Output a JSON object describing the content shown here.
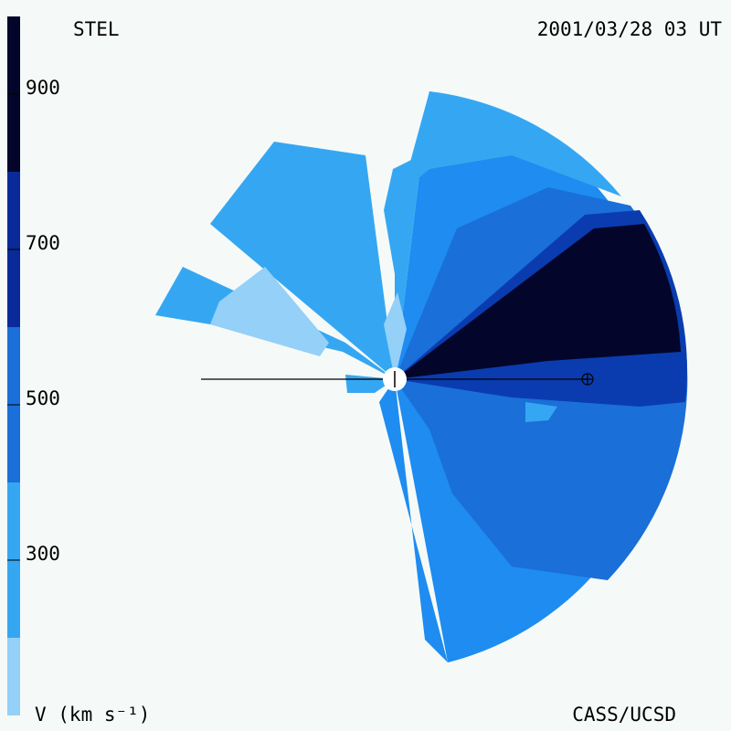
{
  "chart_data": {
    "type": "velocity-map",
    "title": "STEL",
    "subtitle": "2001/03/28 03 UT",
    "colorbar_label": "V (km s⁻¹)",
    "credit": "CASS/UCSD",
    "zlim": [
      100,
      1000
    ],
    "zticks": [
      300,
      500,
      700,
      900
    ]
  }
}
